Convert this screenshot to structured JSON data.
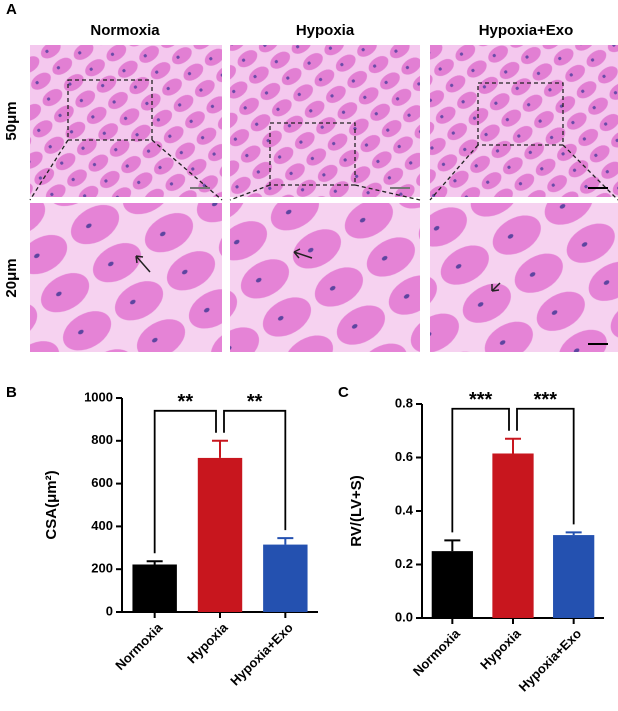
{
  "panel_labels": [
    "A",
    "B",
    "C"
  ],
  "column_titles": [
    "Normoxia",
    "Hypoxia",
    "Hypoxia+Exo"
  ],
  "row_labels": [
    "50μm",
    "20μm"
  ],
  "chart_data": [
    {
      "type": "bar",
      "ylabel": "CSA(μm²)",
      "categories": [
        "Normoxia",
        "Hypoxia",
        "Hypoxia+Exo"
      ],
      "series": [
        {
          "values": [
            222,
            720,
            315
          ],
          "errors": [
            15,
            80,
            30
          ],
          "colors": [
            "#000000",
            "#c8161e",
            "#2451b0"
          ]
        }
      ],
      "ylim": [
        0,
        1000
      ],
      "yticks": [
        0,
        200,
        400,
        600,
        800,
        1000
      ],
      "annotations": [
        "**",
        "**"
      ]
    },
    {
      "type": "bar",
      "ylabel": "RV/(LV+S)",
      "categories": [
        "Normoxia",
        "Hypoxia",
        "Hypoxia+Exo"
      ],
      "series": [
        {
          "values": [
            0.25,
            0.615,
            0.31
          ],
          "errors": [
            0.04,
            0.055,
            0.01
          ],
          "colors": [
            "#000000",
            "#c8161e",
            "#2451b0"
          ]
        }
      ],
      "ylim": [
        0,
        0.8
      ],
      "yticks": [
        {
          "value": 0,
          "label": "0.0"
        },
        0.2,
        0.4,
        0.6,
        0.8
      ],
      "annotations": [
        "***",
        "***"
      ]
    }
  ]
}
